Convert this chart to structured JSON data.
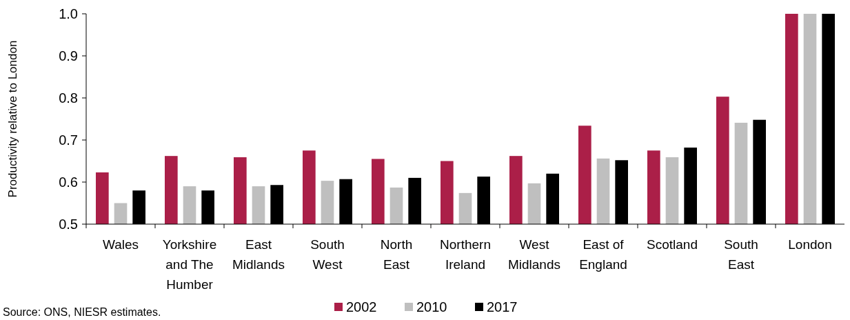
{
  "chart_data": {
    "type": "bar",
    "ylabel": "Productivity relative to London",
    "categories": [
      "Wales",
      "Yorkshire and The Humber",
      "East Midlands",
      "South West",
      "North East",
      "Northern Ireland",
      "West Midlands",
      "East of England",
      "Scotland",
      "South East",
      "London"
    ],
    "series": [
      {
        "name": "2002",
        "color": "#ab1f48",
        "values": [
          0.623,
          0.662,
          0.659,
          0.675,
          0.655,
          0.65,
          0.662,
          0.734,
          0.675,
          0.803,
          1.0
        ]
      },
      {
        "name": "2010",
        "color": "#bfbfbf",
        "values": [
          0.55,
          0.59,
          0.59,
          0.603,
          0.587,
          0.574,
          0.597,
          0.656,
          0.659,
          0.741,
          1.0
        ]
      },
      {
        "name": "2017",
        "color": "#000000",
        "values": [
          0.58,
          0.58,
          0.593,
          0.607,
          0.61,
          0.613,
          0.62,
          0.652,
          0.682,
          0.748,
          1.0
        ]
      }
    ],
    "ylim": [
      0.5,
      1.0
    ],
    "yticks": [
      0.5,
      0.6,
      0.7,
      0.8,
      0.9,
      {
        "value": 1.0,
        "label": "1.0"
      }
    ],
    "grid": false,
    "legend": "bottom",
    "annotations": [
      "Source: ONS, NIESR estimates."
    ]
  }
}
